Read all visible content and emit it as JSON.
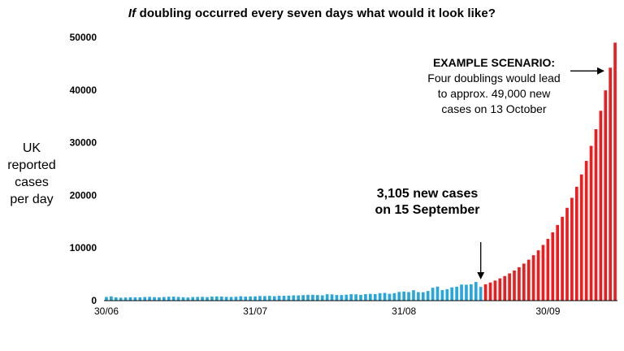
{
  "title_emphasis": "If",
  "title_rest": "doubling occurred every seven days what would it look like?",
  "chart_data": {
    "type": "bar",
    "ylabel": "UK reported cases per day",
    "ylim": [
      0,
      50000
    ],
    "yticks": [
      0,
      10000,
      20000,
      30000,
      40000,
      50000
    ],
    "ytick_labels": [
      "0",
      "10000",
      "20000",
      "30000",
      "40000",
      "50000"
    ],
    "xticks": [
      {
        "index": 0,
        "label": "30/06"
      },
      {
        "index": 31,
        "label": "31/07"
      },
      {
        "index": 62,
        "label": "31/08"
      },
      {
        "index": 92,
        "label": "30/09"
      }
    ],
    "start_date": "30/06",
    "actual_color": "#29a6dc",
    "projected_color": "#ee1c1c",
    "actual_values": [
      700,
      810,
      620,
      560,
      590,
      650,
      630,
      640,
      680,
      720,
      660,
      620,
      690,
      740,
      760,
      700,
      650,
      600,
      680,
      700,
      720,
      670,
      760,
      800,
      780,
      720,
      700,
      740,
      830,
      760,
      800,
      810,
      880,
      860,
      900,
      840,
      910,
      920,
      950,
      1000,
      990,
      1050,
      1100,
      1110,
      1060,
      1000,
      1210,
      1180,
      1070,
      1060,
      1130,
      1220,
      1190,
      1100,
      1230,
      1280,
      1240,
      1420,
      1470,
      1300,
      1420,
      1650,
      1710,
      1630,
      1980,
      1620,
      1600,
      1830,
      2450,
      2660,
      2010,
      2180,
      2520,
      2650,
      3050,
      3020,
      3100,
      3540,
      2600
    ],
    "projected_values": [
      3105,
      3440,
      3810,
      4220,
      4670,
      5170,
      5730,
      6350,
      7030,
      7780,
      8620,
      9550,
      10580,
      11720,
      12980,
      14370,
      15920,
      17630,
      19530,
      21630,
      23960,
      26540,
      29390,
      32560,
      36060,
      39940,
      44240,
      49000
    ]
  },
  "callout_current": {
    "line1": "3,105 new cases",
    "line2": "on 15 September"
  },
  "scenario": {
    "heading": "EXAMPLE SCENARIO:",
    "line1": "Four doublings would lead",
    "line2": "to approx. 49,000 new",
    "line3": "cases on 13 October"
  }
}
